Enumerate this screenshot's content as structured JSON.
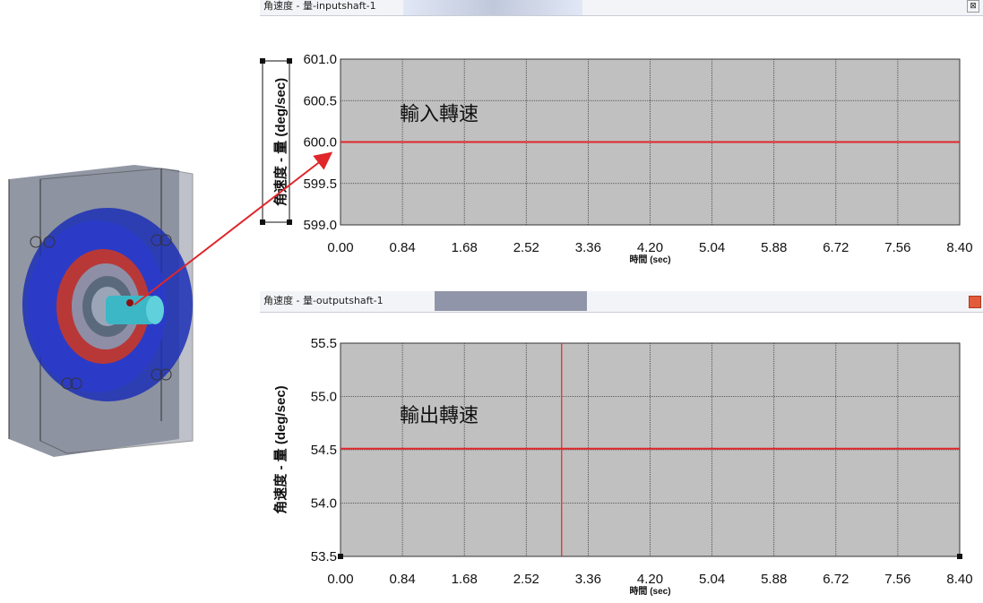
{
  "windows": [
    {
      "title": "角速度 - 量-inputshaft-1",
      "close_icon": "close-icon",
      "annotation": "輸入轉速",
      "xlabel": "時間 (sec)",
      "ylabel": "角速度 - 量 (deg/sec)"
    },
    {
      "title": "角速度 - 量-outputshaft-1",
      "close_icon": "close-icon",
      "annotation": "輸出轉速",
      "xlabel": "時間 (sec)",
      "ylabel": "角速度 - 量 (deg/sec)"
    }
  ],
  "chart_data": [
    {
      "type": "line",
      "title": "",
      "xlabel": "時間 (sec)",
      "ylabel": "角速度 - 量 (deg/sec)",
      "x_ticks": [
        "0.00",
        "0.84",
        "1.68",
        "2.52",
        "3.36",
        "4.20",
        "5.04",
        "5.88",
        "6.72",
        "7.56",
        "8.40"
      ],
      "y_ticks": [
        "601.0",
        "600.5",
        "600.0",
        "599.5",
        "599.0"
      ],
      "xlim": [
        0,
        8.4
      ],
      "ylim": [
        599.0,
        601.0
      ],
      "grid": true,
      "series": [
        {
          "color": "#e0262a",
          "x": [
            0,
            8.4
          ],
          "y": [
            600.0,
            600.0
          ]
        }
      ]
    },
    {
      "type": "line",
      "title": "",
      "xlabel": "時間 (sec)",
      "ylabel": "角速度 - 量 (deg/sec)",
      "x_ticks": [
        "0.00",
        "0.84",
        "1.68",
        "2.52",
        "3.36",
        "4.20",
        "5.04",
        "5.88",
        "6.72",
        "7.56",
        "8.40"
      ],
      "y_ticks": [
        "55.5",
        "55.0",
        "54.5",
        "54.0",
        "53.5"
      ],
      "xlim": [
        0,
        8.4
      ],
      "ylim": [
        53.5,
        55.5
      ],
      "grid": true,
      "cursor_x": 3.0,
      "series": [
        {
          "color": "#e0262a",
          "x": [
            0,
            8.4
          ],
          "y": [
            54.51,
            54.51
          ]
        }
      ]
    }
  ],
  "colors": {
    "plot_bg": "#c0c0c0",
    "line": "#e0262a",
    "grid": "#3a3a3a"
  }
}
